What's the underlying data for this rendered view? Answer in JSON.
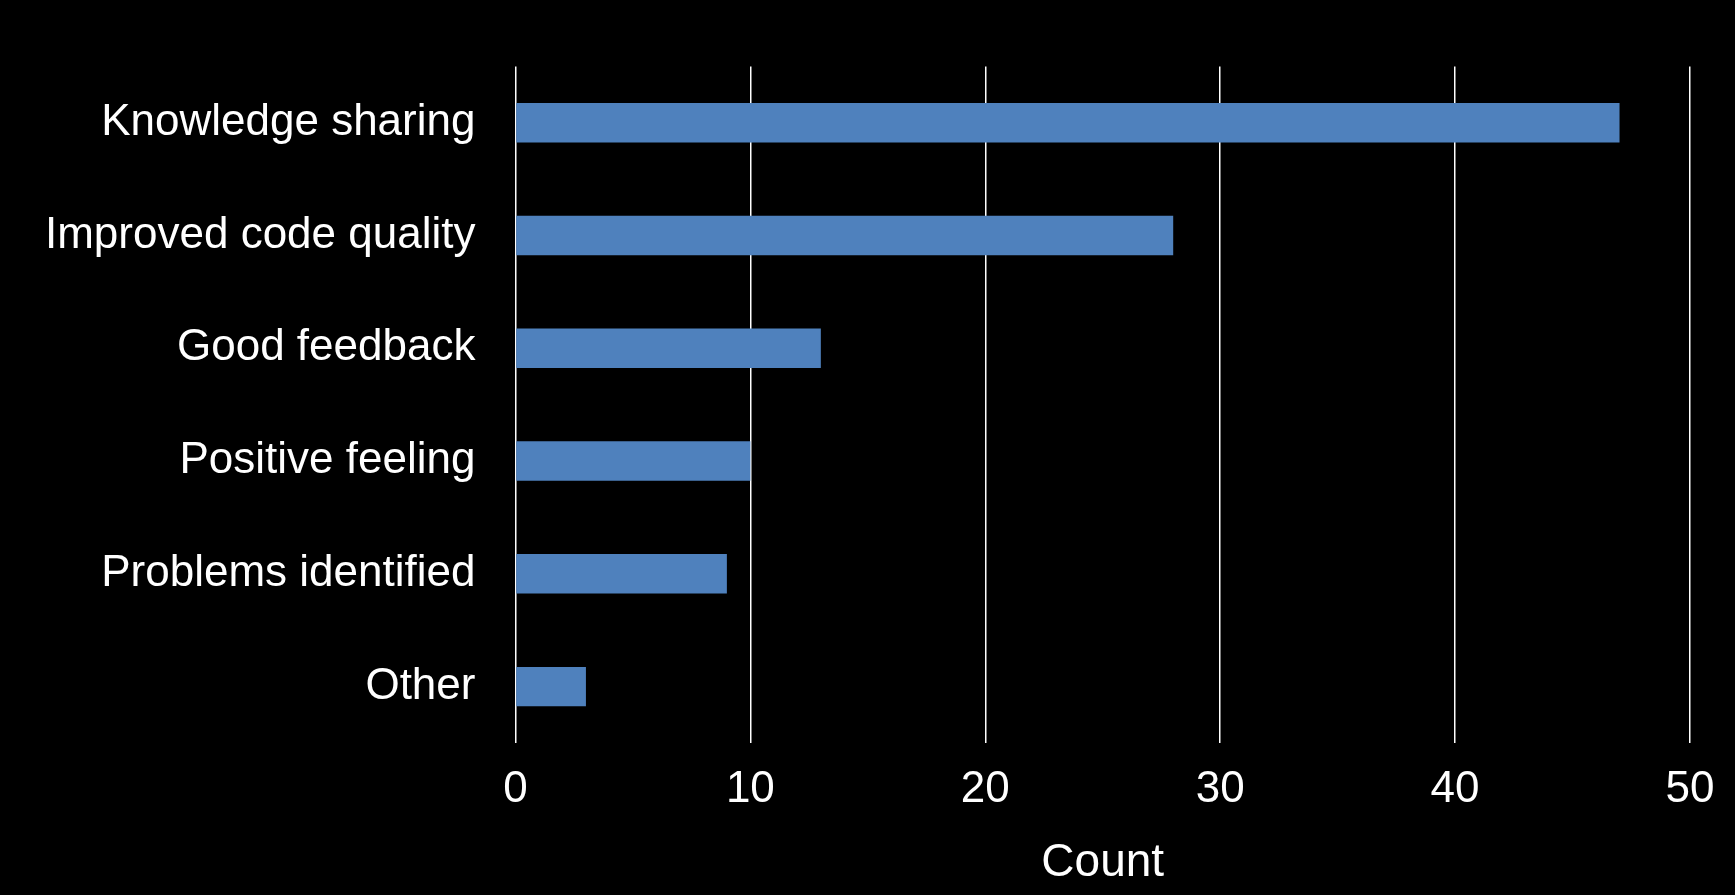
{
  "chart_data": {
    "type": "bar",
    "orientation": "horizontal",
    "xlabel": "Count",
    "categories": [
      "Knowledge sharing",
      "Improved code quality",
      "Good feedback",
      "Positive feeling",
      "Problems identified",
      "Other"
    ],
    "values": [
      47,
      28,
      13,
      10,
      9,
      3
    ],
    "color": "#4f81bd",
    "xlim": [
      0,
      50
    ],
    "xticks": [
      0,
      10,
      20,
      30,
      40,
      50
    ],
    "grid": "x",
    "legend": false
  }
}
